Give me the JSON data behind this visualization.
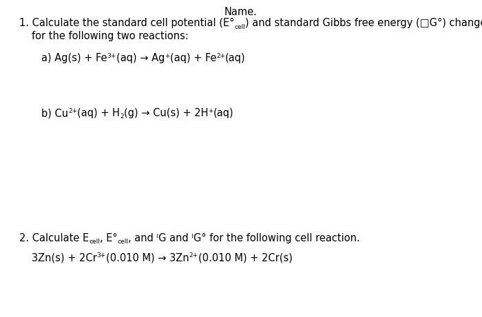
{
  "background_color": "#ffffff",
  "figsize": [
    7.0,
    4.61
  ],
  "dpi": 100,
  "font_family": "DejaVu Sans",
  "fs": 10.5,
  "fs_small": 6.5,
  "title": "Name.",
  "q1_line1a": "1. Calculate the standard cell potential (E",
  "q1_line1b": "cell",
  "q1_line1c": ") and standard Gibbs free energy (□G°) changes",
  "q1_line2": "    for the following two reactions:",
  "ra_p1": "a) Ag(s) + Fe",
  "ra_sup1": "3+",
  "ra_p2": "(aq) → Ag",
  "ra_sup2": "+",
  "ra_p3": "(aq) + Fe",
  "ra_sup3": "2+",
  "ra_p4": "(aq)",
  "rb_p1": "b) Cu",
  "rb_sup1": "2+",
  "rb_p2": "(aq) + H",
  "rb_sub1": "2",
  "rb_p3": "(g) → Cu(s) + 2H",
  "rb_sup2": "+",
  "rb_p4": "(aq)",
  "q2_p1": "2. Calculate E",
  "q2_sub1": "cell",
  "q2_p2": ", E°",
  "q2_sub2": "cell",
  "q2_p3": ", and ᴵG and ᴵG° for the following cell reaction.",
  "r2_p1": "3Zn(s) + 2Cr",
  "r2_sup1": "3+",
  "r2_p2": "(0.010 M) → 3Zn",
  "r2_sup2": "2+",
  "r2_p3": "(0.010 M) + 2Cr(s)"
}
